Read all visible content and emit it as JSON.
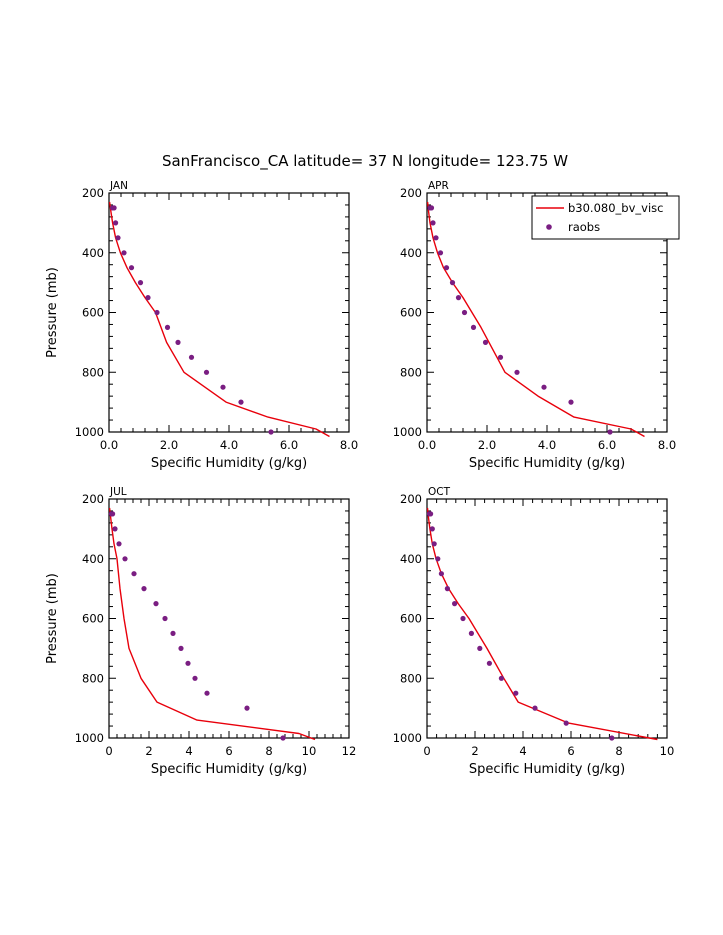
{
  "figure": {
    "title": "SanFrancisco_CA  latitude= 37 N longitude= 123.75 W"
  },
  "legend": {
    "model_label": "b30.080_bv_visc",
    "obs_label": "raobs",
    "model_color": "#e8000b",
    "obs_color": "#7a1e82"
  },
  "chart_data": [
    {
      "type": "line",
      "panel": "JAN",
      "xlabel": "Specific Humidity (g/kg)",
      "ylabel": "Pressure (mb)",
      "xlim": [
        0,
        8
      ],
      "ylim": [
        1000,
        200
      ],
      "x_ticks": [
        0,
        2,
        4,
        6,
        8
      ],
      "x_tick_labels": [
        "0.0",
        "2.0",
        "4.0",
        "6.0",
        "8.0"
      ],
      "y_ticks": [
        200,
        400,
        600,
        800,
        1000
      ],
      "y_tick_labels": [
        "200",
        "400",
        "600",
        "800",
        "1000"
      ],
      "series": [
        {
          "name": "b30.080_bv_visc",
          "kind": "line",
          "x": [
            0.02,
            0.06,
            0.12,
            0.22,
            0.38,
            0.6,
            0.88,
            1.2,
            1.55,
            1.92,
            2.5,
            3.2,
            3.9,
            5.3,
            6.9,
            7.35
          ],
          "y": [
            230,
            260,
            300,
            350,
            400,
            450,
            500,
            550,
            600,
            700,
            800,
            850,
            900,
            950,
            990,
            1015
          ]
        },
        {
          "name": "raobs",
          "kind": "scatter",
          "x": [
            0.12,
            0.17,
            0.22,
            0.3,
            0.5,
            0.75,
            1.05,
            1.3,
            1.6,
            1.95,
            2.3,
            2.75,
            3.25,
            3.8,
            4.4,
            5.4
          ],
          "y": [
            250,
            250,
            300,
            350,
            400,
            450,
            500,
            550,
            600,
            650,
            700,
            750,
            800,
            850,
            900,
            1000
          ]
        }
      ]
    },
    {
      "type": "line",
      "panel": "APR",
      "xlabel": "Specific Humidity (g/kg)",
      "ylabel": "",
      "xlim": [
        0,
        8
      ],
      "ylim": [
        1000,
        200
      ],
      "x_ticks": [
        0,
        2,
        4,
        6,
        8
      ],
      "x_tick_labels": [
        "0.0",
        "2.0",
        "4.0",
        "6.0",
        "8.0"
      ],
      "y_ticks": [
        200,
        400,
        600,
        800,
        1000
      ],
      "y_tick_labels": [
        "200",
        "400",
        "600",
        "800",
        "1000"
      ],
      "series": [
        {
          "name": "b30.080_bv_visc",
          "kind": "line",
          "x": [
            0.02,
            0.05,
            0.1,
            0.2,
            0.35,
            0.55,
            0.85,
            1.2,
            1.8,
            2.6,
            3.7,
            4.9,
            6.8,
            7.25
          ],
          "y": [
            230,
            260,
            300,
            350,
            400,
            450,
            500,
            550,
            650,
            800,
            880,
            950,
            990,
            1015
          ]
        },
        {
          "name": "raobs",
          "kind": "scatter",
          "x": [
            0.1,
            0.15,
            0.2,
            0.3,
            0.45,
            0.65,
            0.85,
            1.05,
            1.25,
            1.55,
            1.95,
            2.45,
            3.0,
            3.9,
            4.8,
            6.1
          ],
          "y": [
            250,
            250,
            300,
            350,
            400,
            450,
            500,
            550,
            600,
            650,
            700,
            750,
            800,
            850,
            900,
            1000
          ]
        }
      ]
    },
    {
      "type": "line",
      "panel": "JUL",
      "xlabel": "Specific Humidity (g/kg)",
      "ylabel": "Pressure (mb)",
      "xlim": [
        0,
        12
      ],
      "ylim": [
        1000,
        200
      ],
      "x_ticks": [
        0,
        2,
        4,
        6,
        8,
        10,
        12
      ],
      "x_tick_labels": [
        "0",
        "2",
        "4",
        "6",
        "8",
        "10",
        "12"
      ],
      "y_ticks": [
        200,
        400,
        600,
        800,
        1000
      ],
      "y_tick_labels": [
        "200",
        "400",
        "600",
        "800",
        "1000"
      ],
      "series": [
        {
          "name": "b30.080_bv_visc",
          "kind": "line",
          "x": [
            0.03,
            0.08,
            0.15,
            0.25,
            0.4,
            0.55,
            0.75,
            1.0,
            1.6,
            2.4,
            4.4,
            9.5,
            10.3
          ],
          "y": [
            230,
            260,
            300,
            350,
            400,
            500,
            600,
            700,
            800,
            880,
            940,
            985,
            1005
          ]
        },
        {
          "name": "raobs",
          "kind": "scatter",
          "x": [
            0.12,
            0.18,
            0.3,
            0.5,
            0.8,
            1.25,
            1.75,
            2.35,
            2.8,
            3.2,
            3.6,
            3.95,
            4.3,
            4.9,
            6.9,
            8.7
          ],
          "y": [
            250,
            250,
            300,
            350,
            400,
            450,
            500,
            550,
            600,
            650,
            700,
            750,
            800,
            850,
            900,
            1000
          ]
        }
      ]
    },
    {
      "type": "line",
      "panel": "OCT",
      "xlabel": "Specific Humidity (g/kg)",
      "ylabel": "",
      "xlim": [
        0,
        10
      ],
      "ylim": [
        1000,
        200
      ],
      "x_ticks": [
        0,
        2,
        4,
        6,
        8,
        10
      ],
      "x_tick_labels": [
        "0",
        "2",
        "4",
        "6",
        "8",
        "10"
      ],
      "y_ticks": [
        200,
        400,
        600,
        800,
        1000
      ],
      "y_tick_labels": [
        "200",
        "400",
        "600",
        "800",
        "1000"
      ],
      "series": [
        {
          "name": "b30.080_bv_visc",
          "kind": "line",
          "x": [
            0.02,
            0.06,
            0.12,
            0.22,
            0.38,
            0.6,
            0.9,
            1.3,
            1.75,
            2.5,
            3.2,
            3.8,
            5.9,
            9.6
          ],
          "y": [
            230,
            260,
            300,
            350,
            400,
            450,
            500,
            550,
            600,
            700,
            800,
            880,
            950,
            1005
          ]
        },
        {
          "name": "raobs",
          "kind": "scatter",
          "x": [
            0.1,
            0.15,
            0.22,
            0.3,
            0.45,
            0.6,
            0.85,
            1.15,
            1.5,
            1.85,
            2.2,
            2.6,
            3.1,
            3.7,
            4.5,
            5.8,
            7.7
          ],
          "y": [
            250,
            250,
            300,
            350,
            400,
            450,
            500,
            550,
            600,
            650,
            700,
            750,
            800,
            850,
            900,
            950,
            1000
          ]
        }
      ]
    }
  ]
}
